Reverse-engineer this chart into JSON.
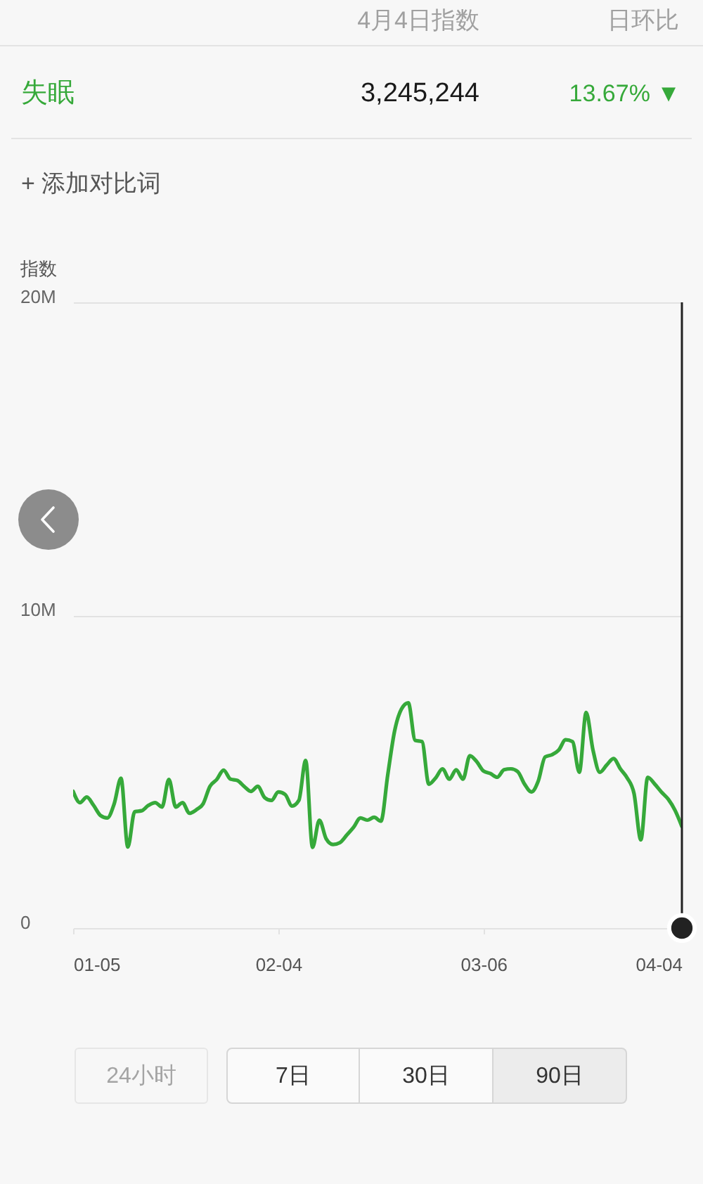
{
  "chart_data": {
    "type": "line",
    "ylabel": "指数",
    "x": [
      "--01-05",
      "--01-06",
      "--01-07",
      "--01-08",
      "--01-09",
      "--01-10",
      "--01-11",
      "--01-12",
      "--01-13",
      "--01-14",
      "--01-15",
      "--01-16",
      "--01-17",
      "--01-18",
      "--01-19",
      "--01-20",
      "--01-21",
      "--01-22",
      "--01-23",
      "--01-24",
      "--01-25",
      "--01-26",
      "--01-27",
      "--01-28",
      "--01-29",
      "--01-30",
      "--01-31",
      "--02-01",
      "--02-02",
      "--02-03",
      "--02-04",
      "--02-05",
      "--02-06",
      "--02-07",
      "--02-08",
      "--02-09",
      "--02-10",
      "--02-11",
      "--02-12",
      "--02-13",
      "--02-14",
      "--02-15",
      "--02-16",
      "--02-17",
      "--02-18",
      "--02-19",
      "--02-20",
      "--02-21",
      "--02-22",
      "--02-23",
      "--02-24",
      "--02-25",
      "--02-26",
      "--02-27",
      "--02-28",
      "--03-01",
      "--03-02",
      "--03-03",
      "--03-04",
      "--03-05",
      "--03-06",
      "--03-07",
      "--03-08",
      "--03-09",
      "--03-10",
      "--03-11",
      "--03-12",
      "--03-13",
      "--03-14",
      "--03-15",
      "--03-16",
      "--03-17",
      "--03-18",
      "--03-19",
      "--03-20",
      "--03-21",
      "--03-22",
      "--03-23",
      "--03-24",
      "--03-25",
      "--03-26",
      "--03-27",
      "--03-28",
      "--03-29",
      "--03-30",
      "--03-31",
      "--04-01",
      "--04-02",
      "--04-03",
      "--04-04"
    ],
    "series": [
      {
        "name": "失眠",
        "color": "#36a93a",
        "values": [
          4370000,
          4010000,
          4190000,
          3920000,
          3600000,
          3520000,
          3970000,
          4790000,
          2590000,
          3720000,
          3750000,
          3920000,
          4010000,
          3870000,
          4750000,
          3870000,
          4010000,
          3670000,
          3780000,
          3970000,
          4530000,
          4750000,
          5050000,
          4760000,
          4720000,
          4530000,
          4370000,
          4530000,
          4170000,
          4080000,
          4350000,
          4270000,
          3900000,
          4080000,
          5360000,
          2580000,
          3450000,
          2850000,
          2670000,
          2730000,
          2970000,
          3220000,
          3520000,
          3450000,
          3540000,
          3420000,
          4900000,
          6300000,
          7000000,
          7200000,
          6000000,
          5960000,
          4600000,
          4800000,
          5090000,
          4760000,
          5060000,
          4760000,
          5510000,
          5320000,
          5020000,
          4940000,
          4820000,
          5060000,
          5090000,
          5000000,
          4600000,
          4350000,
          4700000,
          5470000,
          5540000,
          5690000,
          6020000,
          5960000,
          4980000,
          6890000,
          5690000,
          4980000,
          5210000,
          5420000,
          5090000,
          4800000,
          4300000,
          2820000,
          4820000,
          4610000,
          4350000,
          4120000,
          3760000,
          3245244
        ]
      }
    ],
    "xlim": [
      "--01-05",
      "--04-04"
    ],
    "xticks": [
      {
        "value": "--01-05",
        "label": "01-05"
      },
      {
        "value": "--02-04",
        "label": "02-04"
      },
      {
        "value": "--03-06",
        "label": "03-06"
      },
      {
        "value": "--04-04",
        "label": "04-04"
      }
    ],
    "ylim": [
      0,
      20000000
    ],
    "yticks": [
      0,
      {
        "value": 10000000,
        "label": "10M"
      },
      {
        "value": 20000000,
        "label": "20M"
      }
    ],
    "grid": "y",
    "ref_lines": [
      {
        "axis": "x",
        "value": "--04-04",
        "color": "#222222"
      }
    ],
    "annotations": [
      "4月4日指数",
      "日环比",
      "3,245,244",
      "13.67% ▼",
      "+ 添加对比词",
      "24小时",
      "7日",
      "30日",
      "90日"
    ]
  }
}
